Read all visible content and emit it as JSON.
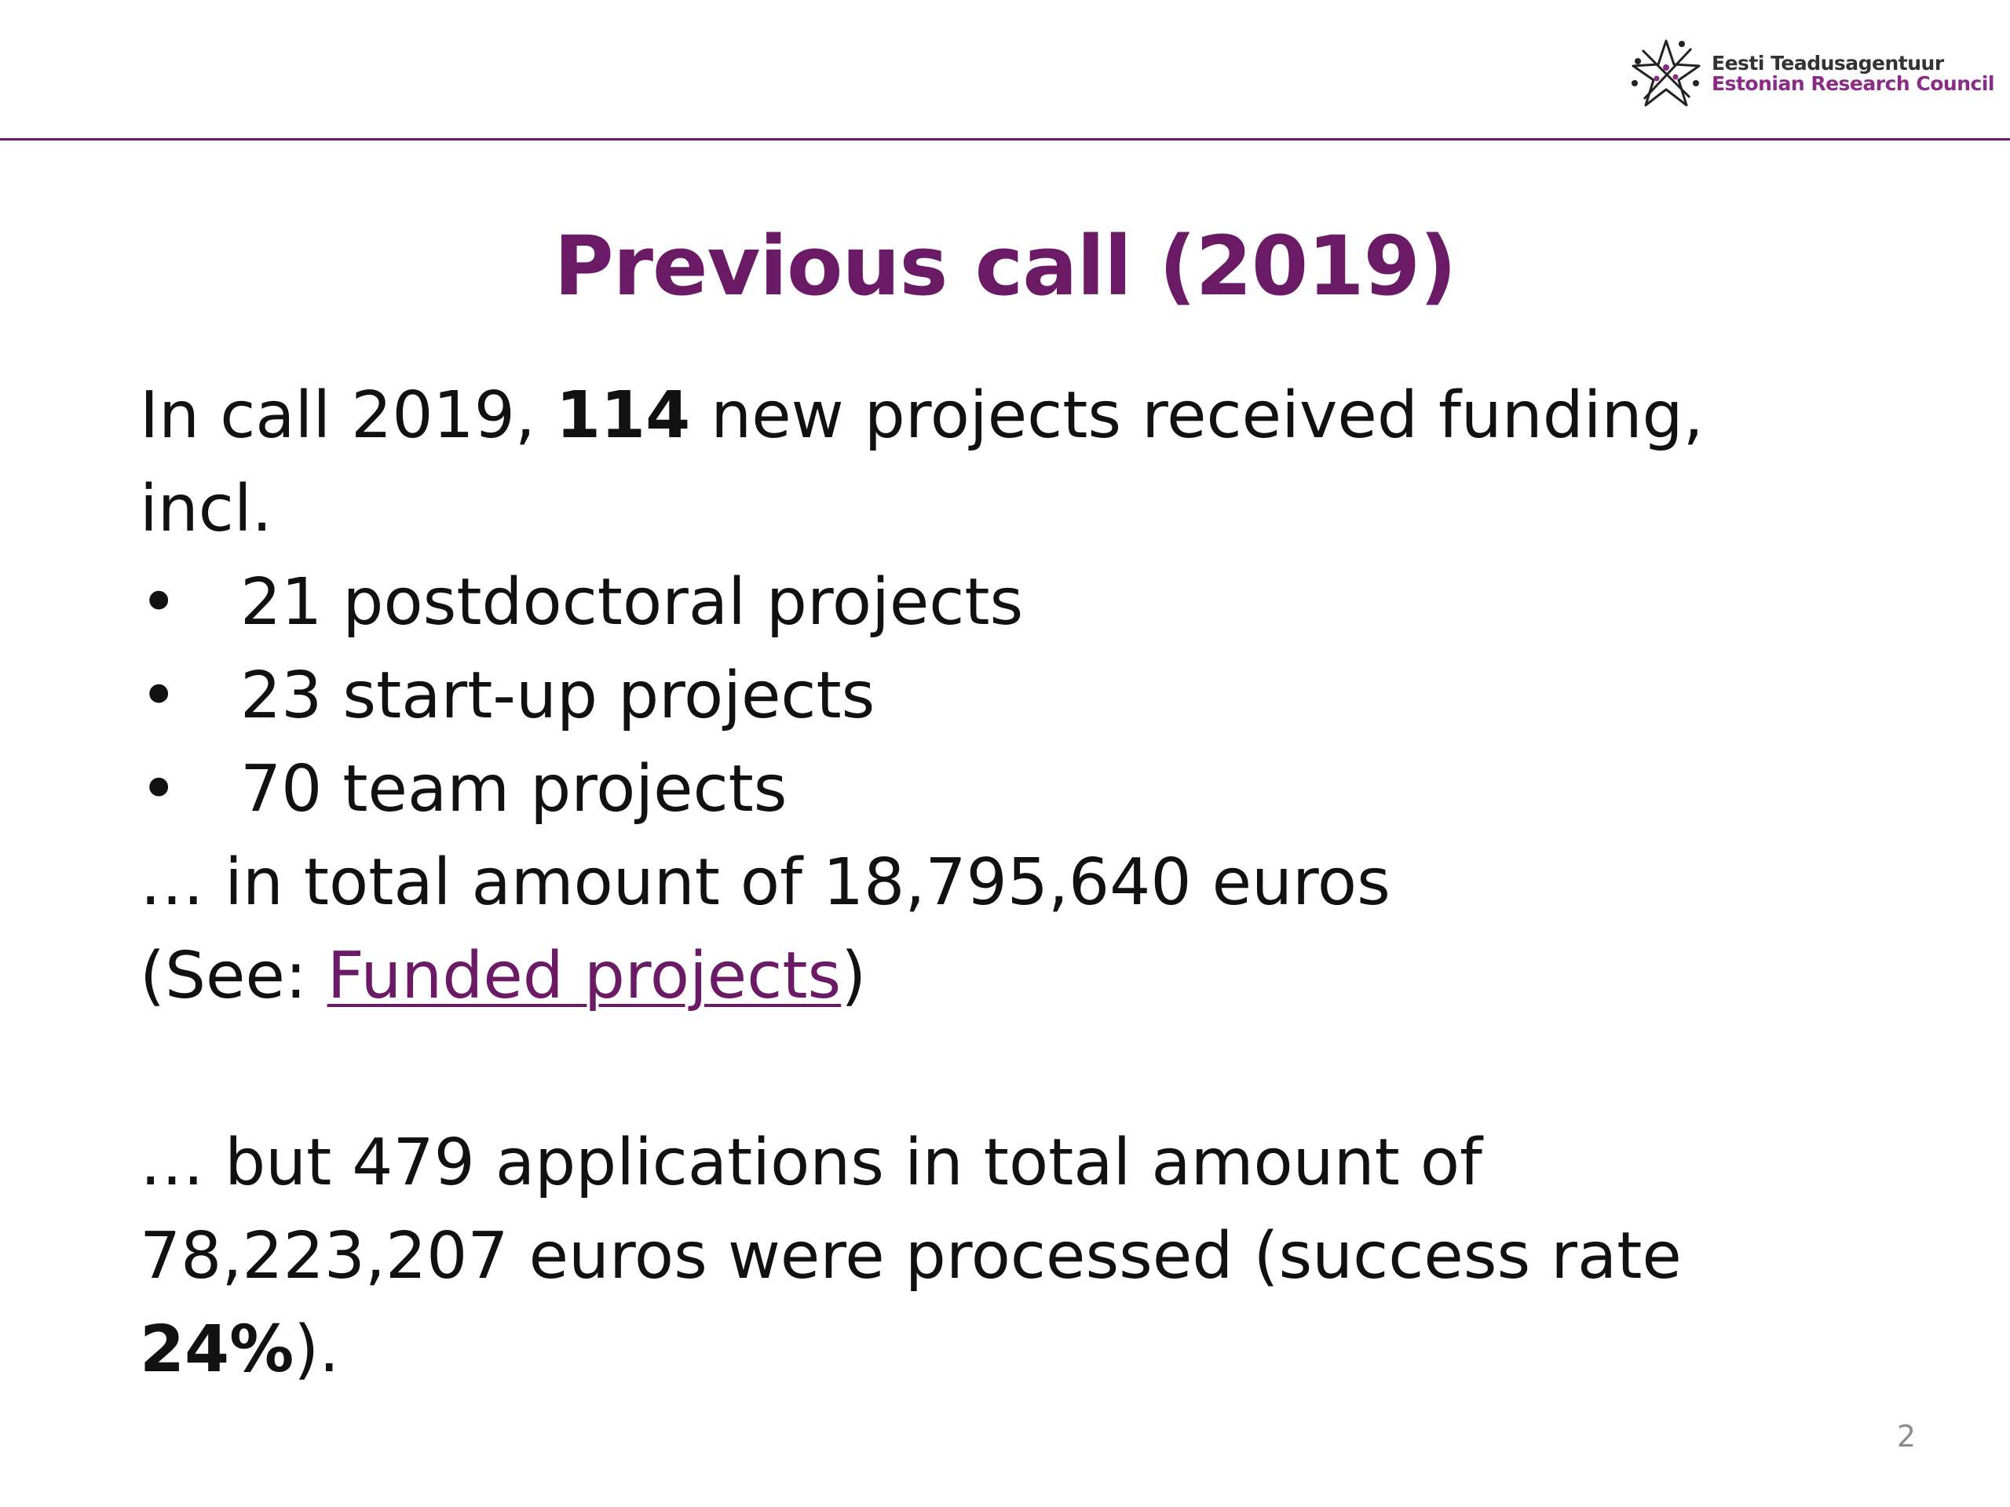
{
  "header": {
    "logo_icon": "star-logo-icon",
    "logo_line1": "Eesti Teadusagentuur",
    "logo_line2": "Estonian Research Council",
    "rule_color": "#6b1a66"
  },
  "title": "Previous call (2019)",
  "body": {
    "intro_prefix": "In call 2019, ",
    "intro_count": "114",
    "intro_suffix": " new projects received funding,",
    "intro_cont": "incl.",
    "bullet_symbol": "•",
    "bullets": [
      "21 postdoctoral projects",
      "23 start-up projects",
      "70 team projects"
    ],
    "total_line": "… in total amount of 18,795,640 euros",
    "see_prefix": "(See: ",
    "see_link": "Funded projects",
    "see_suffix": ")",
    "apps_line1": "… but 479 applications in total amount of",
    "apps_line2": "78,223,207 euros were processed (success rate",
    "rate_value": "24%",
    "rate_suffix": ")."
  },
  "page_number": "2",
  "colors": {
    "accent": "#6b1a66",
    "text": "#111111",
    "page_number": "#8c8c8c"
  }
}
